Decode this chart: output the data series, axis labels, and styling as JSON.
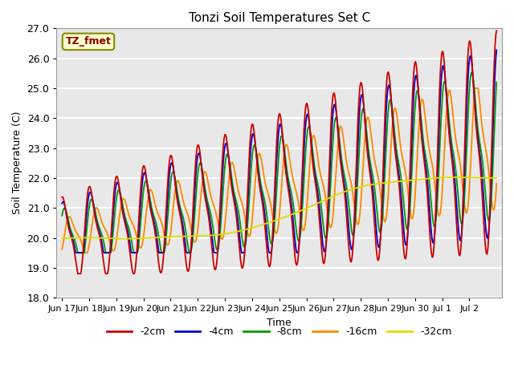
{
  "title": "Tonzi Soil Temperatures Set C",
  "xlabel": "Time",
  "ylabel": "Soil Temperature (C)",
  "ylim": [
    18.0,
    27.0
  ],
  "yticks": [
    18.0,
    19.0,
    20.0,
    21.0,
    22.0,
    23.0,
    24.0,
    25.0,
    26.0,
    27.0
  ],
  "xtick_labels": [
    "Jun 17",
    "Jun 18",
    "Jun 19",
    "Jun 20",
    "Jun 21",
    "Jun 22",
    "Jun 23",
    "Jun 24",
    "Jun 25",
    "Jun 26",
    "Jun 27",
    "Jun 28",
    "Jun 29",
    "Jun 30",
    "Jul 1",
    "Jul 2"
  ],
  "legend_labels": [
    "-2cm",
    "-4cm",
    "-8cm",
    "-16cm",
    "-32cm"
  ],
  "line_colors": [
    "#cc0000",
    "#0000cc",
    "#009900",
    "#ff8800",
    "#dddd00"
  ],
  "annotation_text": "TZ_fmet",
  "annotation_color": "#880000",
  "annotation_bg": "#ffffcc",
  "annotation_border": "#888800",
  "fig_bg": "#ffffff",
  "plot_bg": "#e8e8e8",
  "grid_color": "#ffffff"
}
